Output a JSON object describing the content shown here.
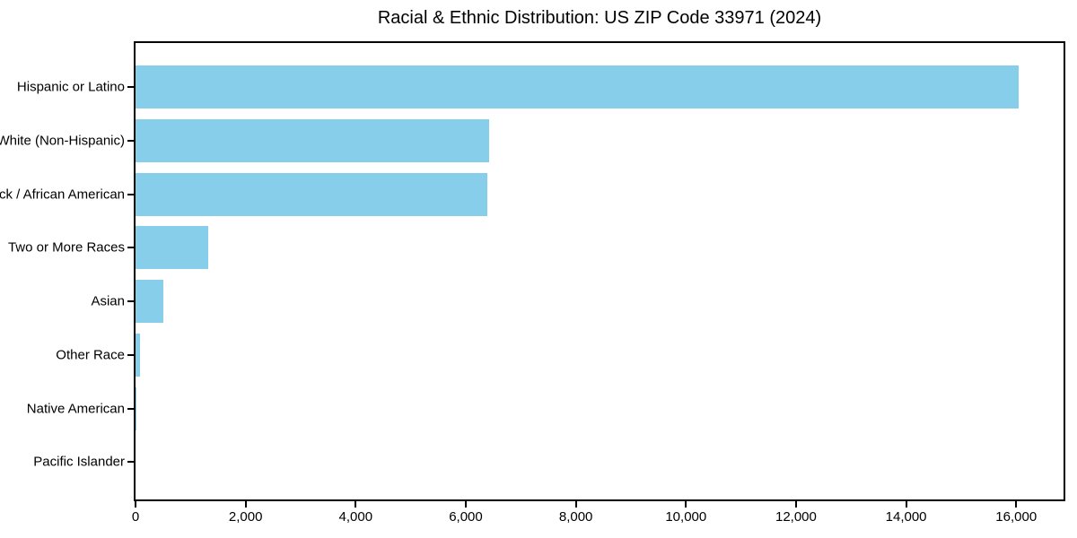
{
  "title": "Racial & Ethnic Distribution: US ZIP Code 33971 (2024)",
  "colors": {
    "bar": "#87CEEB",
    "axis": "#000000",
    "background": "#ffffff",
    "text": "#000000"
  },
  "chart_data": {
    "type": "bar",
    "orientation": "horizontal",
    "title": "Racial & Ethnic Distribution: US ZIP Code 33971 (2024)",
    "categories": [
      "Hispanic or Latino",
      "White (Non-Hispanic)",
      "Black / African American",
      "Two or More Races",
      "Asian",
      "Other Race",
      "Native American",
      "Pacific Islander"
    ],
    "values": [
      16050,
      6420,
      6390,
      1320,
      500,
      80,
      20,
      0
    ],
    "bar_color": "#87CEEB",
    "xlabel": "",
    "ylabel": "",
    "xlim": [
      0,
      16860
    ],
    "x_ticks": [
      0,
      2000,
      4000,
      6000,
      8000,
      10000,
      12000,
      14000,
      16000
    ],
    "x_tick_labels": [
      "0",
      "2,000",
      "4,000",
      "6,000",
      "8,000",
      "10,000",
      "12,000",
      "14,000",
      "16,000"
    ],
    "grid": false,
    "legend": null,
    "plot_border": true
  }
}
